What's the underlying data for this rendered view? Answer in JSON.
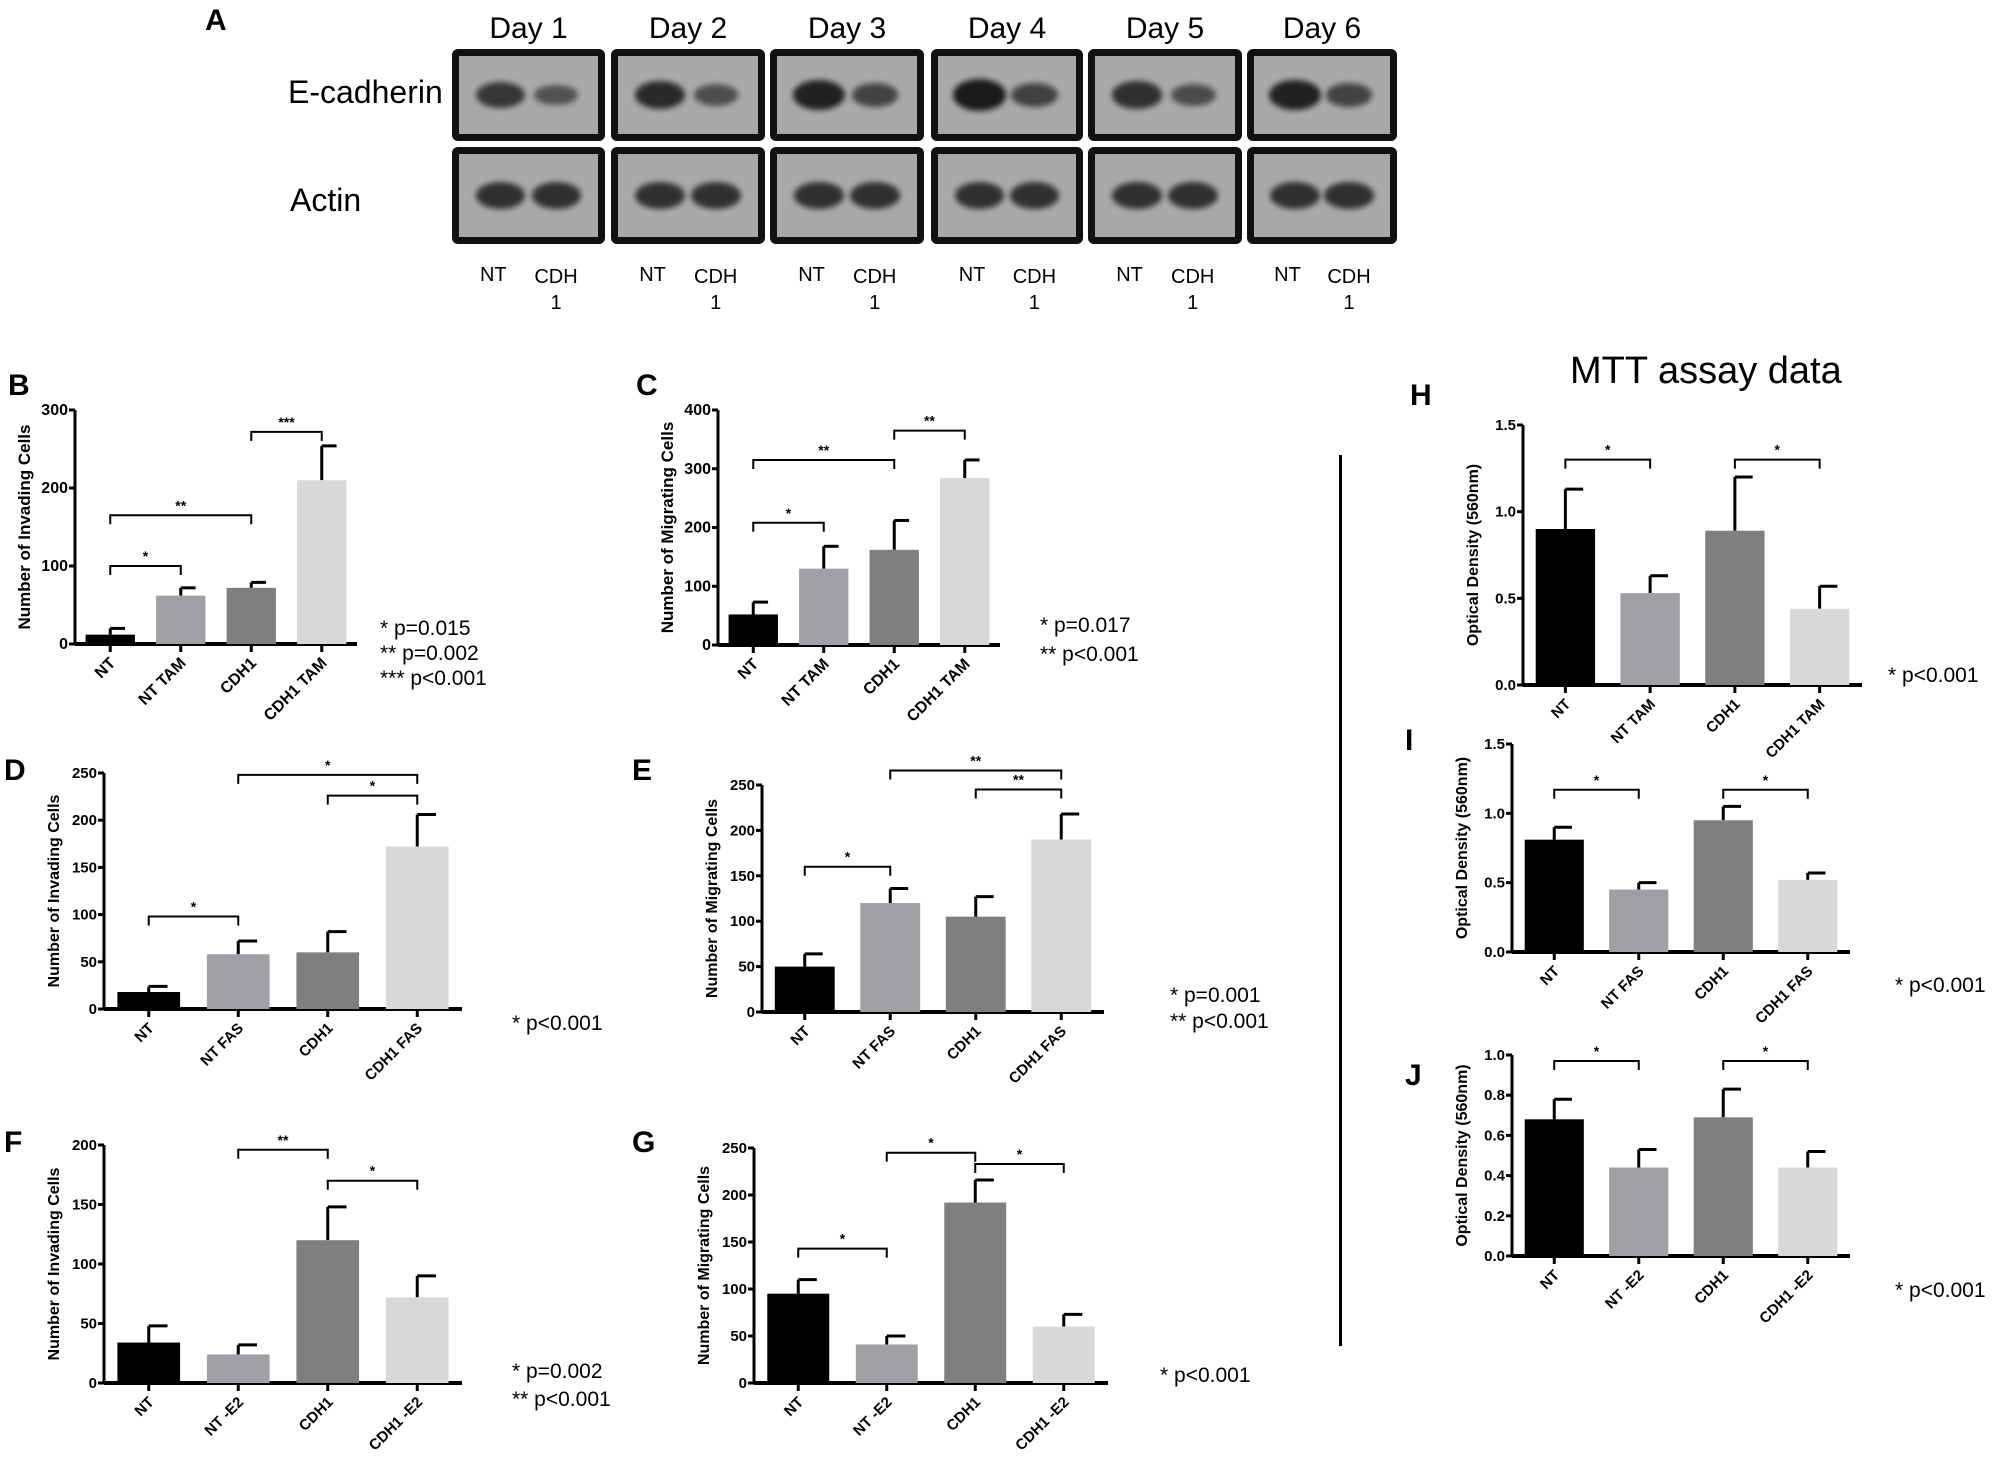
{
  "panel_a": {
    "label": "A",
    "days": [
      "Day 1",
      "Day 2",
      "Day 3",
      "Day 4",
      "Day 5",
      "Day 6"
    ],
    "rows": [
      "E-cadherin",
      "Actin"
    ],
    "lane_nt": "NT",
    "lane_cdh1_line1": "CDH",
    "lane_cdh1_line2": "1"
  },
  "mtt_title": "MTT assay data",
  "colors": {
    "NT": "#000000",
    "treated_NT": "#a0a0a4",
    "CDH1": "#7f7f7f",
    "treated_CDH1": "#d8d8d8"
  },
  "chart_data": [
    {
      "panel": "B",
      "type": "bar",
      "ylabel": "Number of Invading Cells",
      "ylim": [
        0,
        300
      ],
      "yticks": [
        "0",
        "100",
        "200",
        "300"
      ],
      "categories": [
        "NT",
        "NT TAM",
        "CDH1",
        "CDH1 TAM"
      ],
      "values": [
        12,
        62,
        72,
        210
      ],
      "error_upper": [
        20,
        72,
        79,
        254
      ],
      "brackets": [
        {
          "from": 0,
          "to": 1,
          "label": "*",
          "y": 100
        },
        {
          "from": 0,
          "to": 2,
          "label": "**",
          "y": 165
        },
        {
          "from": 2,
          "to": 3,
          "label": "***",
          "y": 272
        }
      ],
      "notes": [
        "*    p=0.015",
        "**    p=0.002",
        "***  p<0.001"
      ]
    },
    {
      "panel": "C",
      "type": "bar",
      "ylabel": "Number of Migrating Cells",
      "ylim": [
        0,
        400
      ],
      "yticks": [
        "0",
        "100",
        "200",
        "300",
        "400"
      ],
      "categories": [
        "NT",
        "NT TAM",
        "CDH1",
        "CDH1 TAM"
      ],
      "values": [
        52,
        130,
        162,
        284
      ],
      "error_upper": [
        73,
        168,
        212,
        315
      ],
      "brackets": [
        {
          "from": 0,
          "to": 1,
          "label": "*",
          "y": 208
        },
        {
          "from": 0,
          "to": 2,
          "label": "**",
          "y": 315
        },
        {
          "from": 2,
          "to": 3,
          "label": "**",
          "y": 365
        }
      ],
      "notes": [
        "*   p=0.017",
        "**  p<0.001"
      ]
    },
    {
      "panel": "D",
      "type": "bar",
      "ylabel": "Number of Invading Cells",
      "ylim": [
        0,
        250
      ],
      "yticks": [
        "0",
        "50",
        "100",
        "150",
        "200",
        "250"
      ],
      "categories": [
        "NT",
        "NT FAS",
        "CDH1",
        "CDH1 FAS"
      ],
      "values": [
        18,
        58,
        60,
        172
      ],
      "error_upper": [
        24,
        72,
        82,
        206
      ],
      "brackets": [
        {
          "from": 0,
          "to": 1,
          "label": "*",
          "y": 98
        },
        {
          "from": 2,
          "to": 3,
          "label": "*",
          "y": 226
        },
        {
          "from": 1,
          "to": 3,
          "label": "*",
          "y": 248
        }
      ],
      "notes": [
        "* p<0.001"
      ]
    },
    {
      "panel": "E",
      "type": "bar",
      "ylabel": "Number of Migrating Cells",
      "ylim": [
        0,
        250
      ],
      "yticks": [
        "0",
        "50",
        "100",
        "150",
        "200",
        "250"
      ],
      "categories": [
        "NT",
        "NT FAS",
        "CDH1",
        "CDH1 FAS"
      ],
      "values": [
        50,
        120,
        105,
        190
      ],
      "error_upper": [
        64,
        136,
        127,
        218
      ],
      "brackets": [
        {
          "from": 0,
          "to": 1,
          "label": "*",
          "y": 160
        },
        {
          "from": 2,
          "to": 3,
          "label": "**",
          "y": 245
        },
        {
          "from": 1,
          "to": 3,
          "label": "**",
          "y": 266
        }
      ],
      "notes": [
        "*  p=0.001",
        "** p<0.001"
      ]
    },
    {
      "panel": "F",
      "type": "bar",
      "ylabel": "Number of Invading Cells",
      "ylim": [
        0,
        200
      ],
      "yticks": [
        "0",
        "50",
        "100",
        "150",
        "200"
      ],
      "categories": [
        "NT",
        "NT -E2",
        "CDH1",
        "CDH1 -E2"
      ],
      "values": [
        34,
        24,
        120,
        72
      ],
      "error_upper": [
        48,
        32,
        148,
        90
      ],
      "brackets": [
        {
          "from": 1,
          "to": 2,
          "label": "**",
          "y": 196
        },
        {
          "from": 2,
          "to": 3,
          "label": "*",
          "y": 170
        }
      ],
      "notes": [
        "*  p=0.002",
        "** p<0.001"
      ]
    },
    {
      "panel": "G",
      "type": "bar",
      "ylabel": "Number of Migrating Cells",
      "ylim": [
        0,
        250
      ],
      "yticks": [
        "0",
        "50",
        "100",
        "150",
        "200",
        "250"
      ],
      "categories": [
        "NT",
        "NT -E2",
        "CDH1",
        "CDH1 -E2"
      ],
      "values": [
        95,
        41,
        192,
        60
      ],
      "error_upper": [
        110,
        50,
        216,
        73
      ],
      "brackets": [
        {
          "from": 0,
          "to": 1,
          "label": "*",
          "y": 143
        },
        {
          "from": 1,
          "to": 2,
          "label": "*",
          "y": 245
        },
        {
          "from": 2,
          "to": 3,
          "label": "*",
          "y": 233
        }
      ],
      "notes": [
        "* p<0.001"
      ]
    },
    {
      "panel": "H",
      "type": "bar",
      "ylabel": "Optical Density (560nm)",
      "ylim": [
        0,
        1.5
      ],
      "yticks": [
        "0.0",
        "0.5",
        "1.0",
        "1.5"
      ],
      "categories": [
        "NT",
        "NT TAM",
        "CDH1",
        "CDH1 TAM"
      ],
      "values": [
        0.9,
        0.53,
        0.89,
        0.44
      ],
      "error_upper": [
        1.13,
        0.63,
        1.2,
        0.57
      ],
      "brackets": [
        {
          "from": 0,
          "to": 1,
          "label": "*",
          "y": 1.3
        },
        {
          "from": 2,
          "to": 3,
          "label": "*",
          "y": 1.3
        }
      ],
      "notes": [
        "* p<0.001"
      ]
    },
    {
      "panel": "I",
      "type": "bar",
      "ylabel": "Optical Density (560nm)",
      "ylim": [
        0,
        1.5
      ],
      "yticks": [
        "0.0",
        "0.5",
        "1.0",
        "1.5"
      ],
      "categories": [
        "NT",
        "NT FAS",
        "CDH1",
        "CDH1 FAS"
      ],
      "values": [
        0.81,
        0.45,
        0.95,
        0.52
      ],
      "error_upper": [
        0.9,
        0.5,
        1.05,
        0.57
      ],
      "brackets": [
        {
          "from": 0,
          "to": 1,
          "label": "*",
          "y": 1.17
        },
        {
          "from": 2,
          "to": 3,
          "label": "*",
          "y": 1.17
        }
      ],
      "notes": [
        "* p<0.001"
      ]
    },
    {
      "panel": "J",
      "type": "bar",
      "ylabel": "Optical Density (560nm)",
      "ylim": [
        0,
        1.0
      ],
      "yticks": [
        "0.0",
        "0.2",
        "0.4",
        "0.6",
        "0.8",
        "1.0"
      ],
      "categories": [
        "NT",
        "NT -E2",
        "CDH1",
        "CDH1 -E2"
      ],
      "values": [
        0.68,
        0.44,
        0.69,
        0.44
      ],
      "error_upper": [
        0.78,
        0.53,
        0.83,
        0.52
      ],
      "brackets": [
        {
          "from": 0,
          "to": 1,
          "label": "*",
          "y": 0.97
        },
        {
          "from": 2,
          "to": 3,
          "label": "*",
          "y": 0.97
        }
      ],
      "notes": [
        "* p<0.001"
      ]
    }
  ]
}
